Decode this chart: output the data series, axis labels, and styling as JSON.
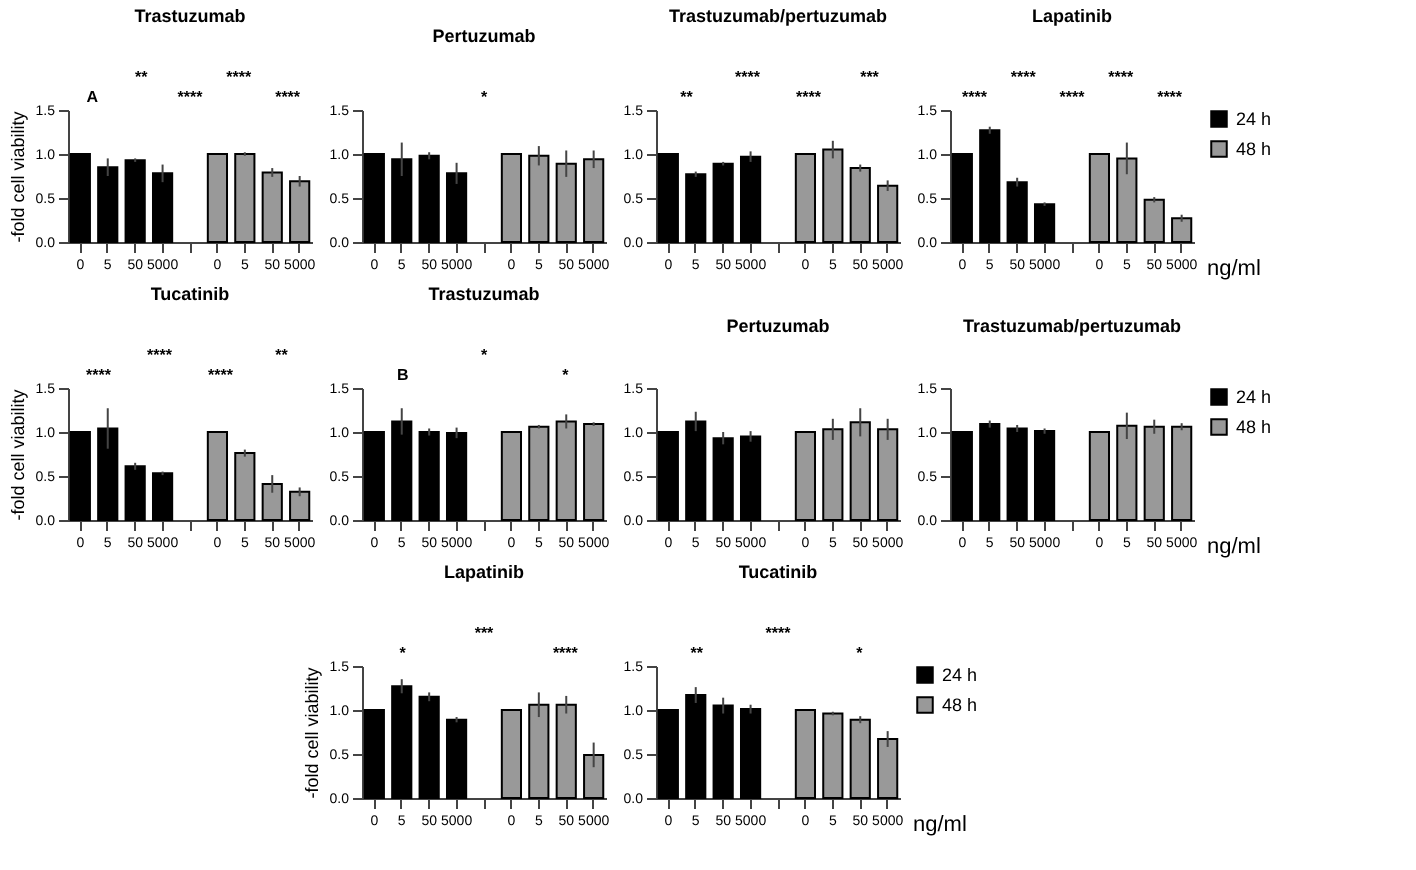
{
  "chart_data": [
    {
      "type": "bar",
      "title": "Trastuzumab",
      "ylabel": "-fold cell viability",
      "annotations": [
        "A",
        "**",
        "****",
        "****",
        "****"
      ],
      "categories": [
        "0",
        "5",
        "50",
        "5000",
        null,
        "0",
        "5",
        "50",
        "5000"
      ],
      "ylim": [
        0,
        1.5
      ],
      "yticks": [
        {
          "value": 0,
          "label": "0.0"
        },
        {
          "value": 0.5,
          "label": "0.5"
        },
        {
          "value": 1,
          "label": "1.0"
        },
        {
          "value": 1.5,
          "label": "1.5"
        }
      ],
      "series": [
        {
          "color": "#000000",
          "values": [
            1.0,
            0.85,
            0.93,
            0.78,
            null,
            null,
            null,
            null,
            null
          ],
          "errors": [
            null,
            0.1,
            0.02,
            0.1,
            null,
            null,
            null,
            null,
            null
          ]
        },
        {
          "color": "#999999",
          "values": [
            null,
            null,
            null,
            null,
            null,
            1.0,
            1.0,
            0.79,
            0.69
          ],
          "errors": [
            null,
            null,
            null,
            null,
            null,
            null,
            0.02,
            0.05,
            0.06
          ]
        }
      ]
    },
    {
      "type": "bar",
      "title": "Pertuzumab",
      "annotations": [
        "*"
      ],
      "categories": [
        "0",
        "5",
        "50",
        "5000",
        null,
        "0",
        "5",
        "50",
        "5000"
      ],
      "ylim": [
        0,
        1.5
      ],
      "yticks": [
        {
          "value": 0,
          "label": "0.0"
        },
        {
          "value": 0.5,
          "label": "0.5"
        },
        {
          "value": 1,
          "label": "1.0"
        },
        {
          "value": 1.5,
          "label": "1.5"
        }
      ],
      "series": [
        {
          "color": "#000000",
          "values": [
            1.0,
            0.94,
            0.98,
            0.78,
            null,
            null,
            null,
            null,
            null
          ],
          "errors": [
            null,
            0.19,
            0.04,
            0.12,
            null,
            null,
            null,
            null,
            null
          ]
        },
        {
          "color": "#999999",
          "values": [
            null,
            null,
            null,
            null,
            null,
            1.0,
            0.98,
            0.89,
            0.94
          ],
          "errors": [
            null,
            null,
            null,
            null,
            null,
            null,
            0.11,
            0.15,
            0.1
          ]
        }
      ]
    },
    {
      "type": "bar",
      "title": "Trastuzumab/pertuzumab",
      "annotations": [
        "**",
        "****",
        "****",
        "***"
      ],
      "categories": [
        "0",
        "5",
        "50",
        "5000",
        null,
        "0",
        "5",
        "50",
        "5000"
      ],
      "ylim": [
        0,
        1.5
      ],
      "yticks": [
        {
          "value": 0,
          "label": "0.0"
        },
        {
          "value": 0.5,
          "label": "0.5"
        },
        {
          "value": 1,
          "label": "1.0"
        },
        {
          "value": 1.5,
          "label": "1.5"
        }
      ],
      "series": [
        {
          "color": "#000000",
          "values": [
            1.0,
            0.77,
            0.89,
            0.97,
            null,
            null,
            null,
            null,
            null
          ],
          "errors": [
            null,
            0.03,
            0.02,
            0.06,
            null,
            null,
            null,
            null,
            null
          ]
        },
        {
          "color": "#999999",
          "values": [
            null,
            null,
            null,
            null,
            null,
            1.0,
            1.05,
            0.84,
            0.64
          ],
          "errors": [
            null,
            null,
            null,
            null,
            null,
            null,
            0.1,
            0.04,
            0.06
          ]
        }
      ]
    },
    {
      "type": "bar",
      "title": "Lapatinib",
      "xlabel": "ng/ml",
      "legend": "right",
      "annotations": [
        "****",
        "****",
        "****",
        "****",
        "****"
      ],
      "categories": [
        "0",
        "5",
        "50",
        "5000",
        null,
        "0",
        "5",
        "50",
        "5000"
      ],
      "ylim": [
        0,
        1.5
      ],
      "yticks": [
        {
          "value": 0,
          "label": "0.0"
        },
        {
          "value": 0.5,
          "label": "0.5"
        },
        {
          "value": 1,
          "label": "1.0"
        },
        {
          "value": 1.5,
          "label": "1.5"
        }
      ],
      "series": [
        {
          "name": "24 h",
          "color": "#000000",
          "values": [
            1.0,
            1.27,
            0.68,
            0.43,
            null,
            null,
            null,
            null,
            null
          ],
          "errors": [
            null,
            0.04,
            0.05,
            0.02,
            null,
            null,
            null,
            null,
            null
          ]
        },
        {
          "name": "48 h",
          "color": "#999999",
          "values": [
            null,
            null,
            null,
            null,
            null,
            1.0,
            0.95,
            0.48,
            0.27
          ],
          "errors": [
            null,
            null,
            null,
            null,
            null,
            null,
            0.18,
            0.03,
            0.04
          ]
        }
      ]
    },
    {
      "type": "bar",
      "title": "Tucatinib",
      "ylabel": "-fold cell viability",
      "annotations": [
        "****",
        "****",
        "****",
        "**"
      ],
      "categories": [
        "0",
        "5",
        "50",
        "5000",
        null,
        "0",
        "5",
        "50",
        "5000"
      ],
      "ylim": [
        0,
        1.5
      ],
      "yticks": [
        {
          "value": 0,
          "label": "0.0"
        },
        {
          "value": 0.5,
          "label": "0.5"
        },
        {
          "value": 1,
          "label": "1.0"
        },
        {
          "value": 1.5,
          "label": "1.5"
        }
      ],
      "series": [
        {
          "color": "#000000",
          "values": [
            1.0,
            1.04,
            0.61,
            0.53,
            null,
            null,
            null,
            null,
            null
          ],
          "errors": [
            null,
            0.23,
            0.04,
            0.02,
            null,
            null,
            null,
            null,
            null
          ]
        },
        {
          "color": "#999999",
          "values": [
            null,
            null,
            null,
            null,
            null,
            1.0,
            0.76,
            0.41,
            0.32
          ],
          "errors": [
            null,
            null,
            null,
            null,
            null,
            null,
            0.04,
            0.1,
            0.05
          ]
        }
      ]
    },
    {
      "type": "bar",
      "title": "Trastuzumab",
      "annotations": [
        "B",
        "*",
        "*"
      ],
      "categories": [
        "0",
        "5",
        "50",
        "5000",
        null,
        "0",
        "5",
        "50",
        "5000"
      ],
      "ylim": [
        0,
        1.5
      ],
      "yticks": [
        {
          "value": 0,
          "label": "0.0"
        },
        {
          "value": 0.5,
          "label": "0.5"
        },
        {
          "value": 1,
          "label": "1.0"
        },
        {
          "value": 1.5,
          "label": "1.5"
        }
      ],
      "series": [
        {
          "color": "#000000",
          "values": [
            1.0,
            1.12,
            1.0,
            0.99,
            null,
            null,
            null,
            null,
            null
          ],
          "errors": [
            null,
            0.15,
            0.04,
            0.06,
            null,
            null,
            null,
            null,
            null
          ]
        },
        {
          "color": "#999999",
          "values": [
            null,
            null,
            null,
            null,
            null,
            1.0,
            1.06,
            1.12,
            1.09
          ],
          "errors": [
            null,
            null,
            null,
            null,
            null,
            null,
            0.02,
            0.08,
            0.02
          ]
        }
      ]
    },
    {
      "type": "bar",
      "title": "Pertuzumab",
      "categories": [
        "0",
        "5",
        "50",
        "5000",
        null,
        "0",
        "5",
        "50",
        "5000"
      ],
      "ylim": [
        0,
        1.5
      ],
      "yticks": [
        {
          "value": 0,
          "label": "0.0"
        },
        {
          "value": 0.5,
          "label": "0.5"
        },
        {
          "value": 1,
          "label": "1.0"
        },
        {
          "value": 1.5,
          "label": "1.5"
        }
      ],
      "series": [
        {
          "color": "#000000",
          "values": [
            1.0,
            1.12,
            0.93,
            0.95,
            null,
            null,
            null,
            null,
            null
          ],
          "errors": [
            null,
            0.11,
            0.07,
            0.06,
            null,
            null,
            null,
            null,
            null
          ]
        },
        {
          "color": "#999999",
          "values": [
            null,
            null,
            null,
            null,
            null,
            1.0,
            1.03,
            1.11,
            1.03
          ],
          "errors": [
            null,
            null,
            null,
            null,
            null,
            null,
            0.12,
            0.16,
            0.12
          ]
        }
      ]
    },
    {
      "type": "bar",
      "title": "Trastuzumab/pertuzumab",
      "xlabel": "ng/ml",
      "legend": "right",
      "categories": [
        "0",
        "5",
        "50",
        "5000",
        null,
        "0",
        "5",
        "50",
        "5000"
      ],
      "ylim": [
        0,
        1.5
      ],
      "yticks": [
        {
          "value": 0,
          "label": "0.0"
        },
        {
          "value": 0.5,
          "label": "0.5"
        },
        {
          "value": 1,
          "label": "1.0"
        },
        {
          "value": 1.5,
          "label": "1.5"
        }
      ],
      "series": [
        {
          "name": "24 h",
          "color": "#000000",
          "values": [
            1.0,
            1.09,
            1.04,
            1.01,
            null,
            null,
            null,
            null,
            null
          ],
          "errors": [
            null,
            0.04,
            0.04,
            0.03,
            null,
            null,
            null,
            null,
            null
          ]
        },
        {
          "name": "48 h",
          "color": "#999999",
          "values": [
            null,
            null,
            null,
            null,
            null,
            1.0,
            1.07,
            1.06,
            1.06
          ],
          "errors": [
            null,
            null,
            null,
            null,
            null,
            null,
            0.15,
            0.08,
            0.04
          ]
        }
      ]
    },
    {
      "type": "bar",
      "title": "Lapatinib",
      "ylabel": "-fold cell viability",
      "annotations": [
        "*",
        "***",
        "****"
      ],
      "categories": [
        "0",
        "5",
        "50",
        "5000",
        null,
        "0",
        "5",
        "50",
        "5000"
      ],
      "ylim": [
        0,
        1.5
      ],
      "yticks": [
        {
          "value": 0,
          "label": "0.0"
        },
        {
          "value": 0.5,
          "label": "0.5"
        },
        {
          "value": 1,
          "label": "1.0"
        },
        {
          "value": 1.5,
          "label": "1.5"
        }
      ],
      "series": [
        {
          "color": "#000000",
          "values": [
            1.0,
            1.27,
            1.15,
            0.89,
            null,
            null,
            null,
            null,
            null
          ],
          "errors": [
            null,
            0.08,
            0.05,
            0.03,
            null,
            null,
            null,
            null,
            null
          ]
        },
        {
          "color": "#999999",
          "values": [
            null,
            null,
            null,
            null,
            null,
            1.0,
            1.06,
            1.06,
            0.49
          ],
          "errors": [
            null,
            null,
            null,
            null,
            null,
            null,
            0.14,
            0.1,
            0.14
          ]
        }
      ]
    },
    {
      "type": "bar",
      "title": "Tucatinib",
      "xlabel": "ng/ml",
      "legend": "right",
      "annotations": [
        "**",
        "****",
        "*"
      ],
      "categories": [
        "0",
        "5",
        "50",
        "5000",
        null,
        "0",
        "5",
        "50",
        "5000"
      ],
      "ylim": [
        0,
        1.5
      ],
      "yticks": [
        {
          "value": 0,
          "label": "0.0"
        },
        {
          "value": 0.5,
          "label": "0.5"
        },
        {
          "value": 1,
          "label": "1.0"
        },
        {
          "value": 1.5,
          "label": "1.5"
        }
      ],
      "series": [
        {
          "name": "24 h",
          "color": "#000000",
          "values": [
            1.0,
            1.17,
            1.05,
            1.01,
            null,
            null,
            null,
            null,
            null
          ],
          "errors": [
            null,
            0.09,
            0.09,
            0.05,
            null,
            null,
            null,
            null,
            null
          ]
        },
        {
          "name": "48 h",
          "color": "#999999",
          "values": [
            null,
            null,
            null,
            null,
            null,
            1.0,
            0.96,
            0.89,
            0.67
          ],
          "errors": [
            null,
            null,
            null,
            null,
            null,
            null,
            0.02,
            0.04,
            0.09
          ]
        }
      ]
    }
  ]
}
